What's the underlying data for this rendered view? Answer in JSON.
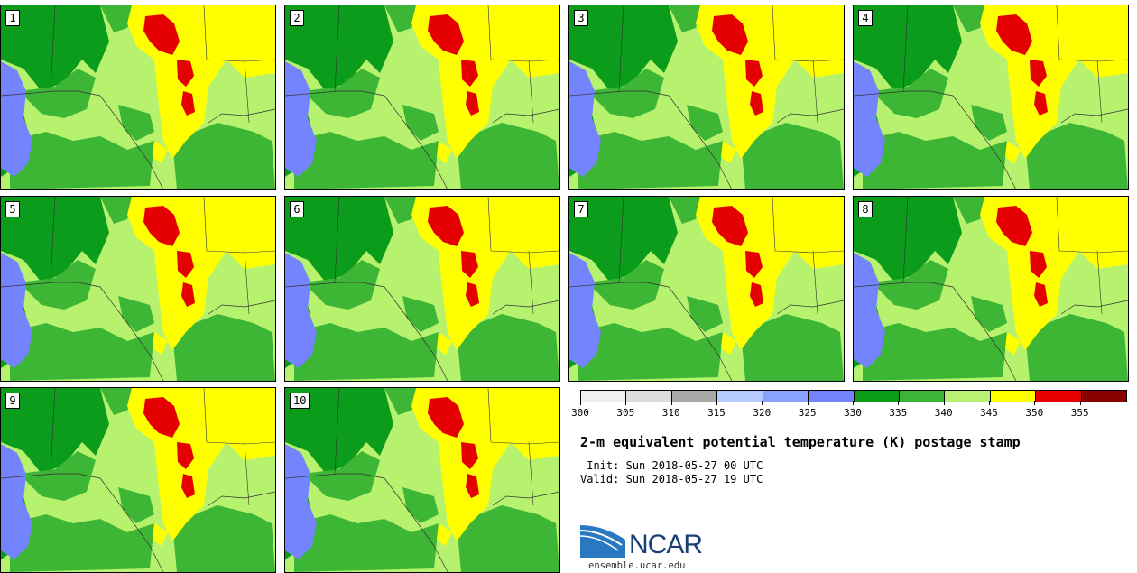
{
  "stamps": [
    {
      "label": "1"
    },
    {
      "label": "2"
    },
    {
      "label": "3"
    },
    {
      "label": "4"
    },
    {
      "label": "5"
    },
    {
      "label": "6"
    },
    {
      "label": "7"
    },
    {
      "label": "8"
    },
    {
      "label": "9"
    },
    {
      "label": "10"
    }
  ],
  "colorbar": {
    "colors": [
      "#f0f0f0",
      "#dcdcdc",
      "#a9a9a9",
      "#b5cbff",
      "#8aa2ff",
      "#7484ff",
      "#0b9c1a",
      "#3bb535",
      "#b9f271",
      "#ffff00",
      "#e80000",
      "#880000"
    ],
    "ticks": [
      "300",
      "305",
      "310",
      "315",
      "320",
      "325",
      "330",
      "335",
      "340",
      "345",
      "350",
      "355"
    ]
  },
  "title": "2-m equivalent potential temperature (K) postage stamp",
  "init": " Init: Sun 2018-05-27 00 UTC",
  "valid": "Valid: Sun 2018-05-27 19 UTC",
  "logo": {
    "text": "NCAR",
    "url": "ensemble.ucar.edu"
  },
  "map_colors": {
    "light_green": "#b7f26f",
    "mid_green": "#3db535",
    "dark_green": "#0a9c1a",
    "blue": "#7484ff",
    "yellow": "#ffff00",
    "red": "#e40000"
  }
}
